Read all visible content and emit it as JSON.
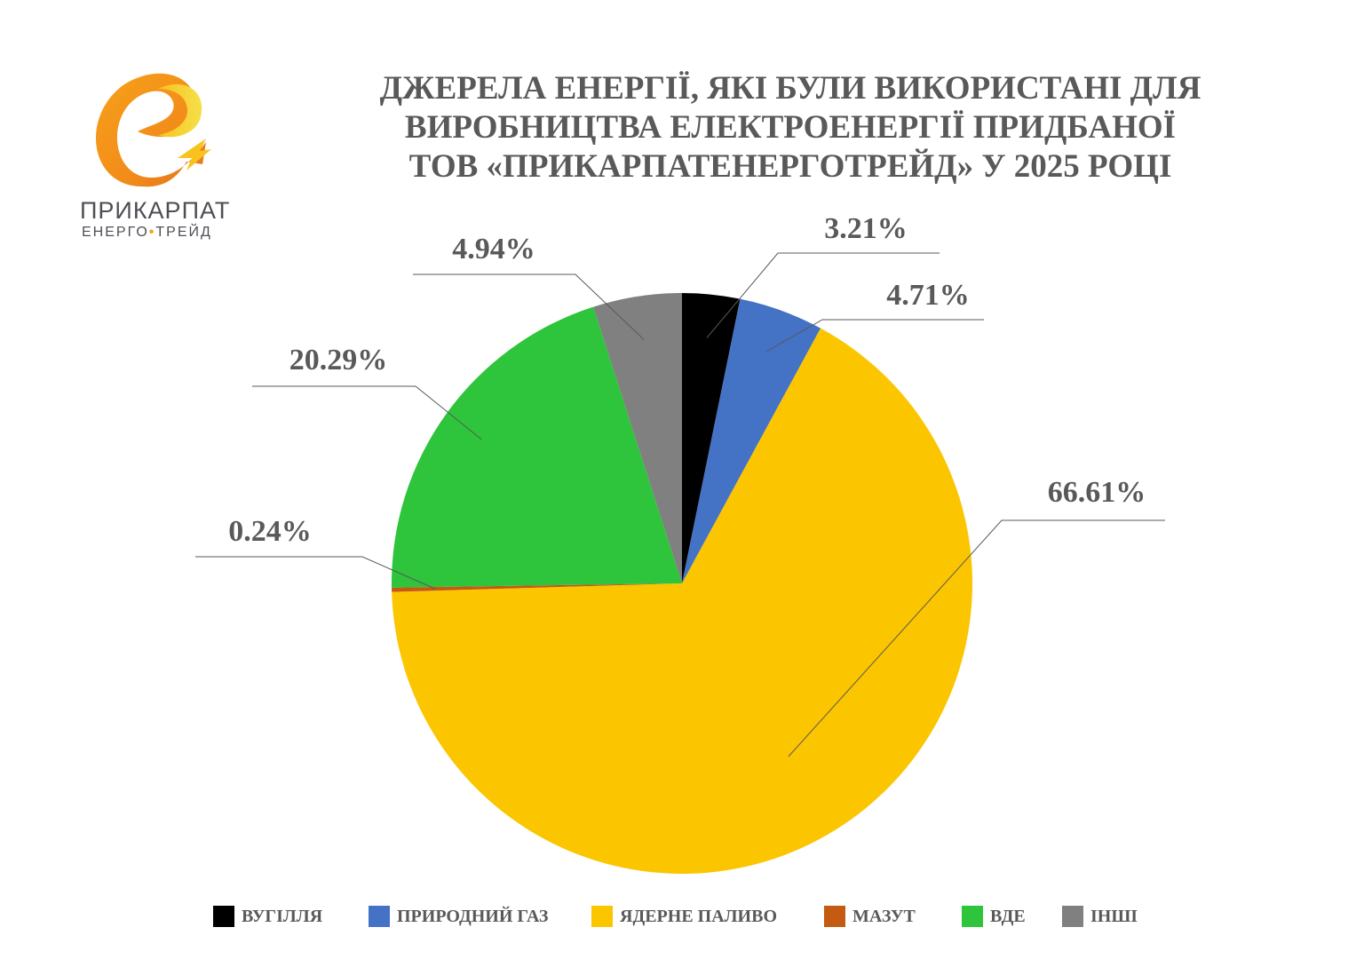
{
  "logo": {
    "name": "ПРИКАРПАТ",
    "sub_left": "ЕНЕРГО",
    "sub_dot": "•",
    "sub_right": "ТРЕЙД"
  },
  "chart_data": {
    "type": "pie",
    "title_lines": [
      "ДЖЕРЕЛА ЕНЕРГІЇ, ЯКІ БУЛИ ВИКОРИСТАНІ ДЛЯ",
      "ВИРОБНИЦТВА ЕЛЕКТРОЕНЕРГІЇ  ПРИДБАНОЇ",
      "ТОВ «ПРИКАРПАТЕНЕРГОТРЕЙД» У 2025 РОЦІ"
    ],
    "slices": [
      {
        "name": "ВУГІЛЛЯ",
        "value": 3.21,
        "label": "3.21%",
        "color": "#000000"
      },
      {
        "name": "ПРИРОДНИЙ ГАЗ",
        "value": 4.71,
        "label": "4.71%",
        "color": "#4472c4"
      },
      {
        "name": "ЯДЕРНЕ ПАЛИВО",
        "value": 66.61,
        "label": "66.61%",
        "color": "#fbc500"
      },
      {
        "name": "МАЗУТ",
        "value": 0.24,
        "label": "0.24%",
        "color": "#c55a11"
      },
      {
        "name": "ВДЕ",
        "value": 20.29,
        "label": "20.29%",
        "color": "#2ec43b"
      },
      {
        "name": "ІНШІ",
        "value": 4.94,
        "label": "4.94%",
        "color": "#808080"
      }
    ],
    "legend_position": "bottom"
  }
}
